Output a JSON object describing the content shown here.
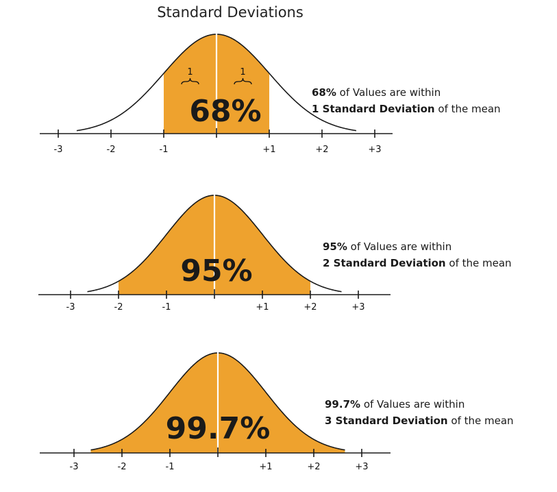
{
  "title": "Standard Deviations",
  "colors": {
    "fill": "#eea22e",
    "curve": "#1a1a1a",
    "axis": "#1a1a1a",
    "center": "#ffffff"
  },
  "panels": [
    {
      "percent": "68%",
      "sigma": 1,
      "tick_labels": [
        "-3",
        "-2",
        "-1",
        "+1",
        "+2",
        "+3"
      ],
      "brace_labels": [
        "1",
        "1"
      ],
      "caption_bold": "68%",
      "caption_rest": " of Values are within",
      "caption2_bold": "1 Standard Deviation",
      "caption2_rest": " of the mean"
    },
    {
      "percent": "95%",
      "sigma": 2,
      "tick_labels": [
        "-3",
        "-2",
        "-1",
        "+1",
        "+2",
        "+3"
      ],
      "caption_bold": "95%",
      "caption_rest": " of Values are within",
      "caption2_bold": "2 Standard Deviation",
      "caption2_rest": " of the mean"
    },
    {
      "percent": "99.7%",
      "sigma": 3,
      "tick_labels": [
        "-3",
        "-2",
        "-1",
        "+1",
        "+2",
        "+3"
      ],
      "caption_bold": "99.7%",
      "caption_rest": " of Values are within",
      "caption2_bold": "3 Standard Deviation",
      "caption2_rest": " of the mean"
    }
  ]
}
